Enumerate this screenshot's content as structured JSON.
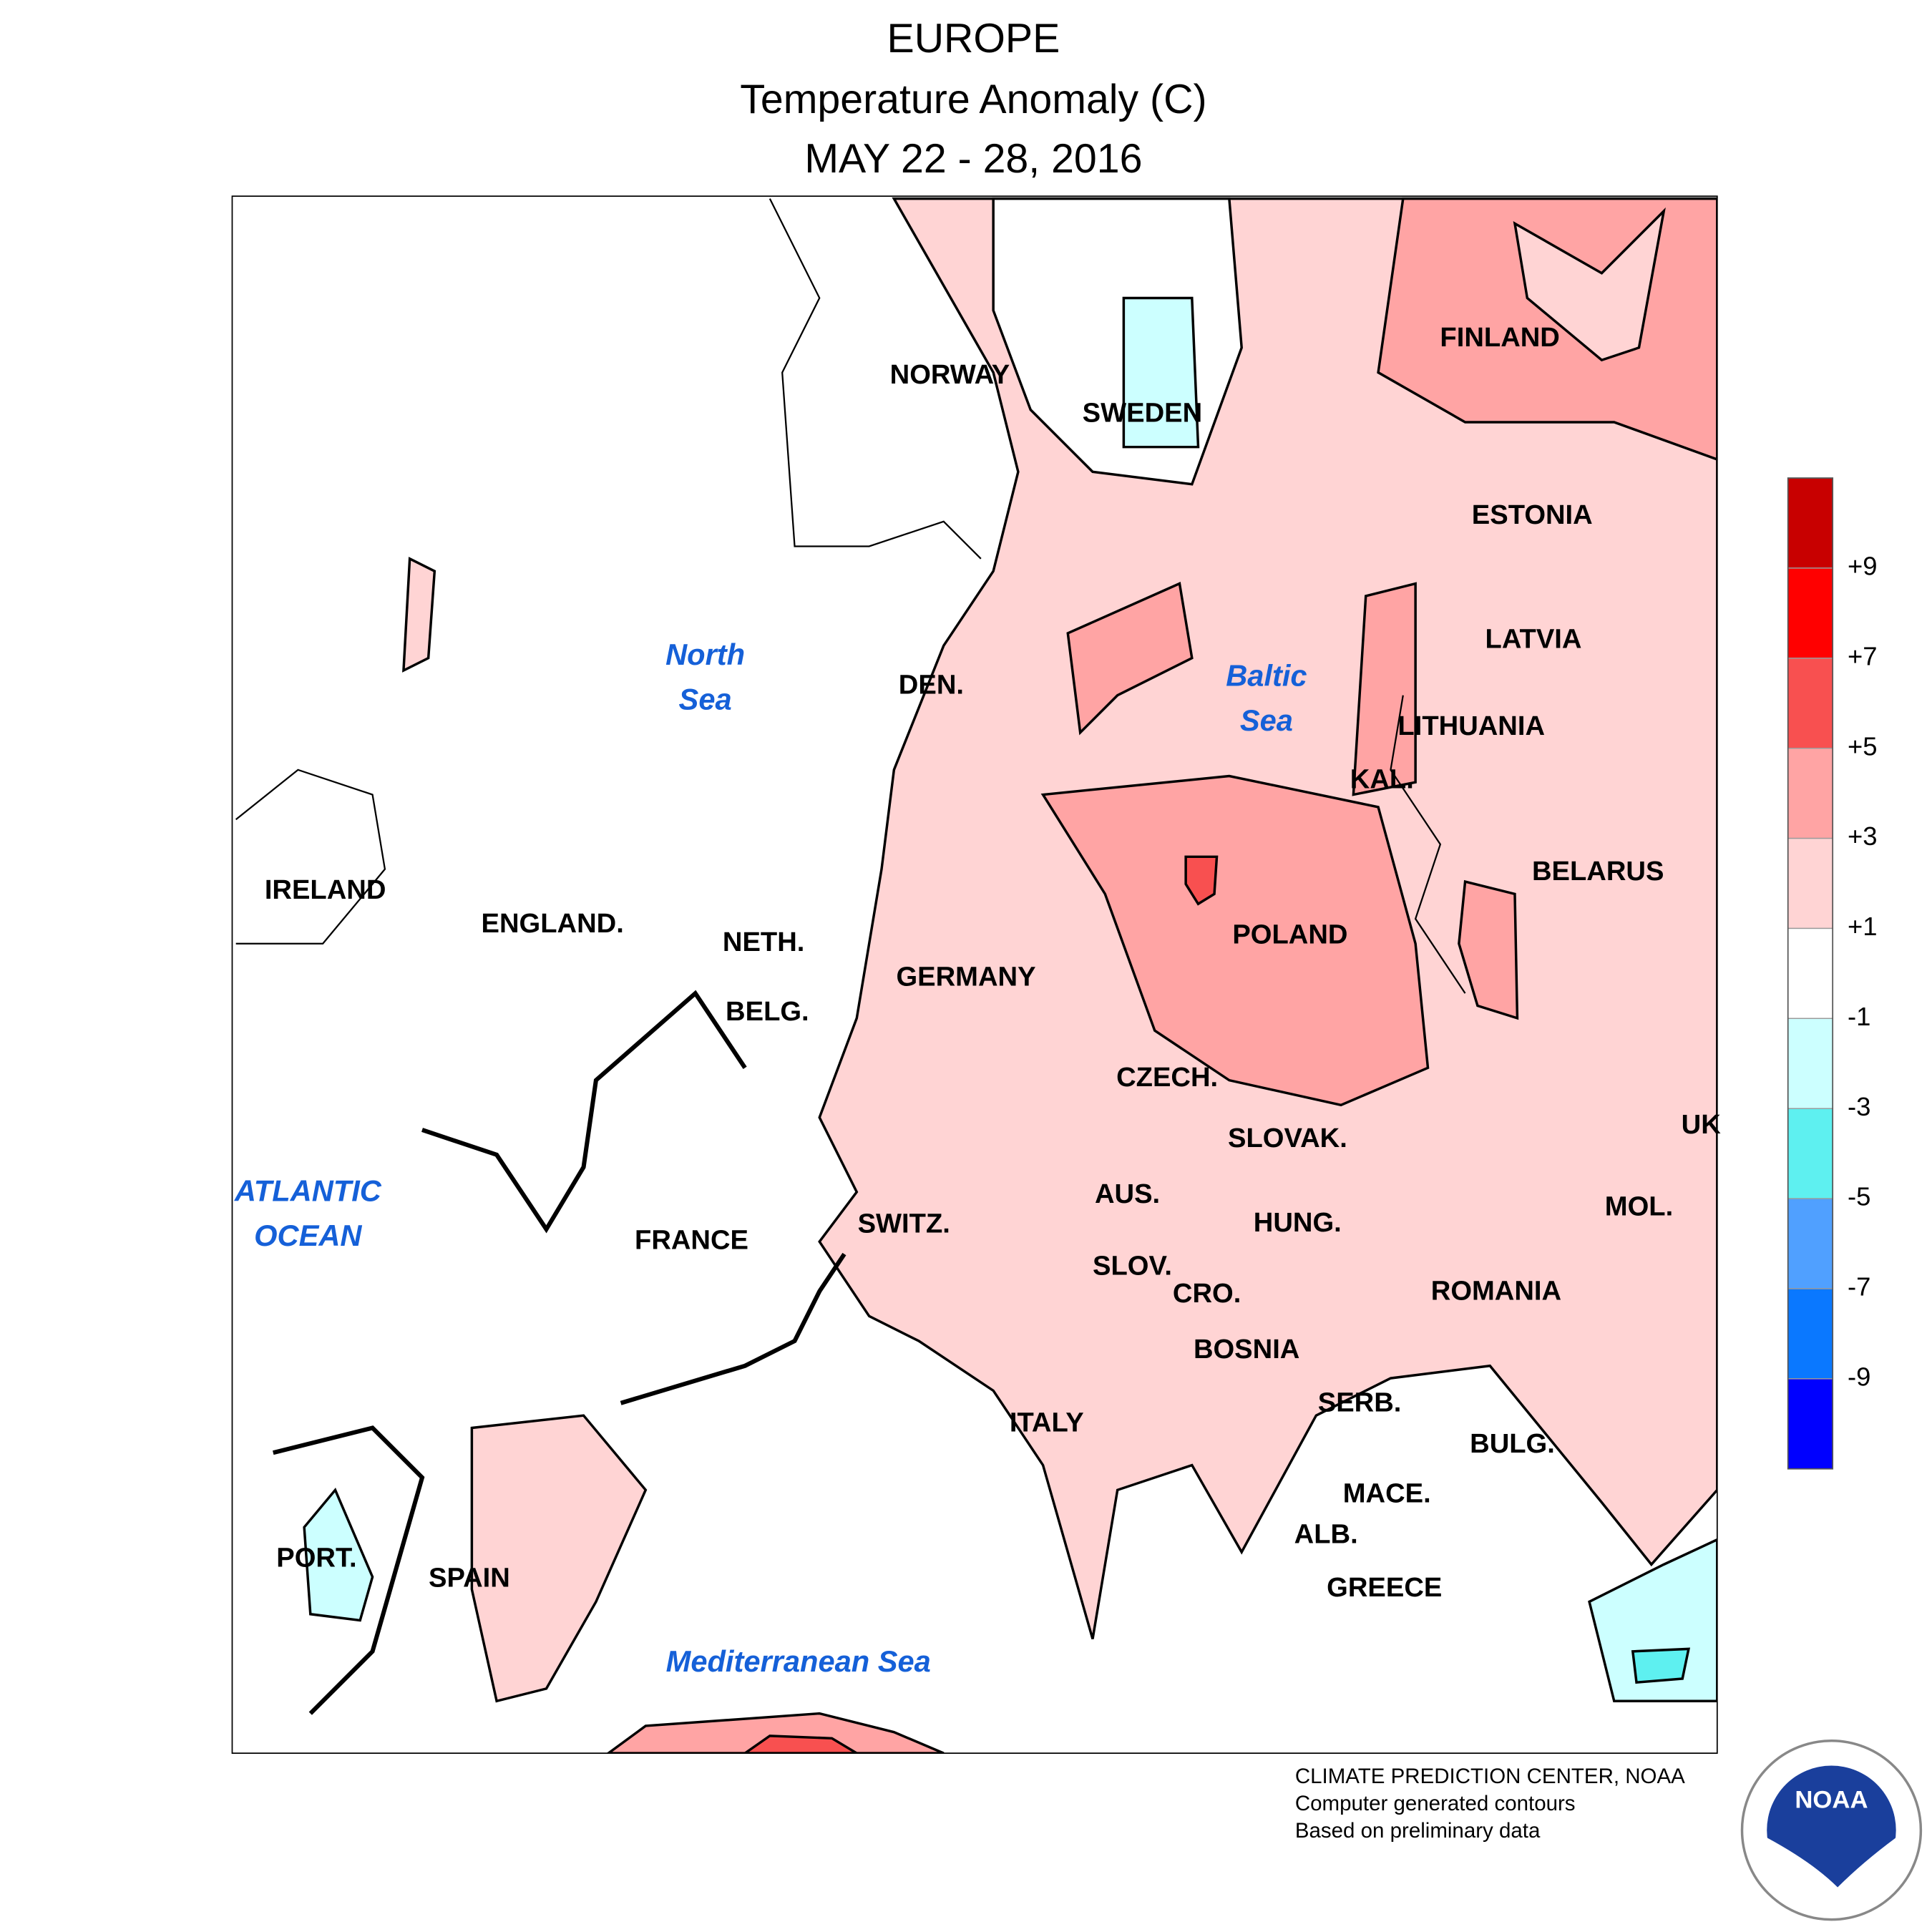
{
  "title": {
    "lines": [
      "EUROPE",
      "Temperature Anomaly (C)",
      "MAY 22 - 28, 2016"
    ]
  },
  "map": {
    "labels": [
      "NORWAY",
      "SWEDEN",
      "FINLAND",
      "ESTONIA",
      "LATVIA",
      "LITHUANIA",
      "KAL.",
      "DEN.",
      "BELARUS",
      "POLAND",
      "IRELAND",
      "ENGLAND.",
      "NETH.",
      "GERMANY",
      "BELG.",
      "CZECH.",
      "SLOVAK.",
      "UK",
      "AUS.",
      "MOL.",
      "SWITZ.",
      "HUNG.",
      "FRANCE",
      "SLOV.",
      "CRO.",
      "ROMANIA",
      "BOSNIA",
      "SERB.",
      "ITALY",
      "BULG.",
      "MACE.",
      "ALB.",
      "PORT.",
      "SPAIN",
      "GREECE"
    ],
    "seas": [
      [
        "North",
        "Sea"
      ],
      [
        "Baltic",
        "Sea"
      ],
      [
        "ATLANTIC",
        "OCEAN"
      ],
      [
        "Mediterranean Sea"
      ]
    ]
  },
  "legend": {
    "labels": [
      "+9",
      "+7",
      "+5",
      "+3",
      "+1",
      "-1",
      "-3",
      "-5",
      "-7",
      "-9"
    ],
    "colors": [
      "#c80000",
      "#ff0000",
      "#f85050",
      "#ffa4a4",
      "#ffd4d4",
      "#ffffff",
      "#ccffff",
      "#5ef0f0",
      "#50a0ff",
      "#0a78ff",
      "#0000ff"
    ]
  },
  "footer": {
    "lines": [
      "CLIMATE PREDICTION CENTER, NOAA",
      "Computer generated contours",
      "Based on preliminary data"
    ],
    "logo": "NOAA"
  }
}
